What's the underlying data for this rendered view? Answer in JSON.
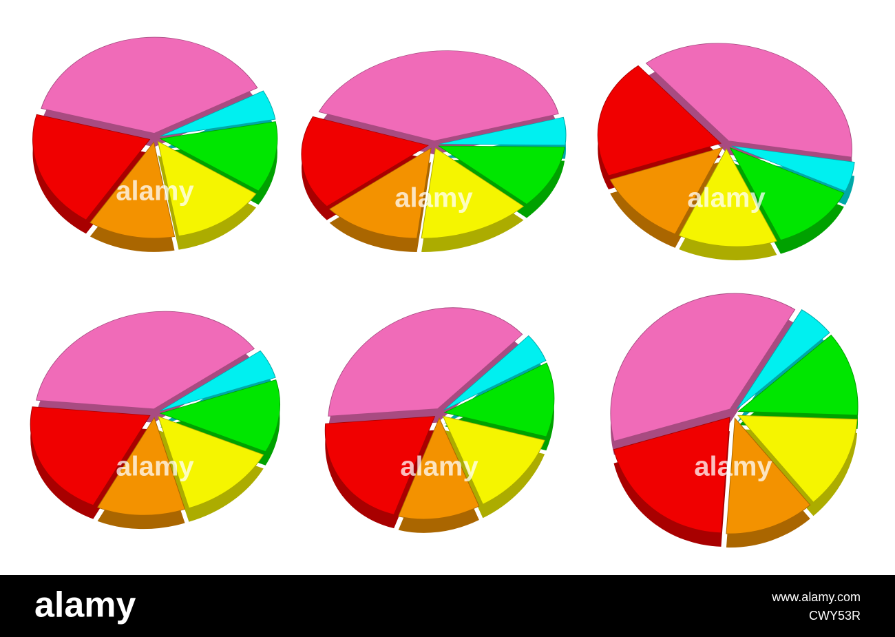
{
  "chart_data": [
    {
      "type": "pie",
      "values": [
        38,
        5,
        12,
        13,
        12,
        20
      ],
      "colors": [
        "#f06bb8",
        "#00f0f0",
        "#00e600",
        "#f5f500",
        "#f39200",
        "#f00000"
      ]
    },
    {
      "type": "pie",
      "values": [
        40,
        5,
        11,
        14,
        13,
        17
      ],
      "colors": [
        "#f06bb8",
        "#00f0f0",
        "#00e600",
        "#f5f500",
        "#f39200",
        "#f00000"
      ]
    },
    {
      "type": "pie",
      "values": [
        38,
        5,
        12,
        13,
        12,
        20
      ],
      "colors": [
        "#f06bb8",
        "#00f0f0",
        "#00e600",
        "#f5f500",
        "#f39200",
        "#f00000"
      ]
    },
    {
      "type": "pie",
      "values": [
        38,
        5,
        12,
        13,
        12,
        20
      ],
      "colors": [
        "#f06bb8",
        "#00f0f0",
        "#00e600",
        "#f5f500",
        "#f39200",
        "#f00000"
      ]
    },
    {
      "type": "pie",
      "values": [
        38,
        5,
        12,
        13,
        12,
        20
      ],
      "colors": [
        "#f06bb8",
        "#00f0f0",
        "#00e600",
        "#f5f500",
        "#f39200",
        "#f00000"
      ]
    },
    {
      "type": "pie",
      "values": [
        38,
        5,
        12,
        13,
        12,
        20
      ],
      "colors": [
        "#f06bb8",
        "#00f0f0",
        "#00e600",
        "#f5f500",
        "#f39200",
        "#f00000"
      ]
    }
  ],
  "watermark": "alamy",
  "footer": {
    "logo": "alamy",
    "url": "www.alamy.com",
    "id": "CWY53R"
  }
}
